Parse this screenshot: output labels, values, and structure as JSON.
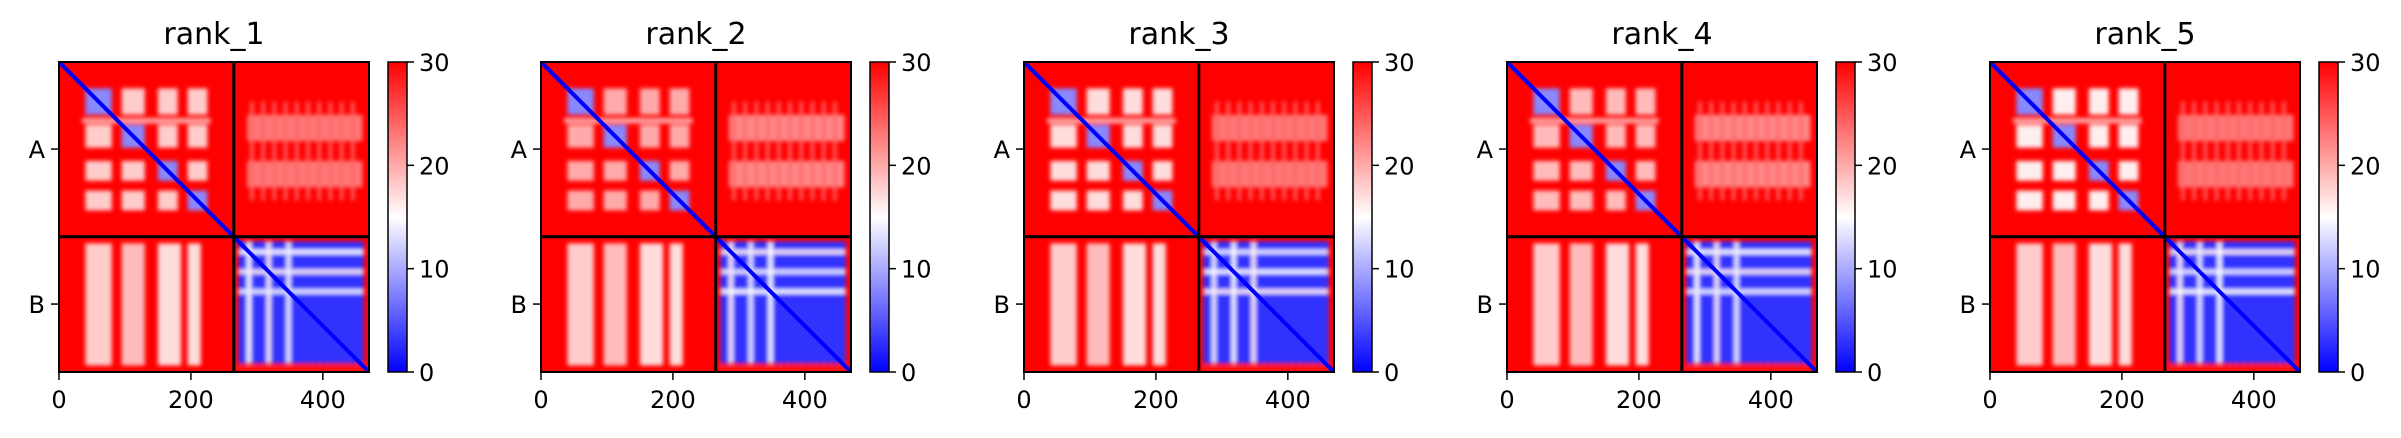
{
  "chart_data": {
    "type": "heatmap",
    "panels": [
      {
        "title": "rank_1",
        "variant": 1
      },
      {
        "title": "rank_2",
        "variant": 2
      },
      {
        "title": "rank_3",
        "variant": 3
      },
      {
        "title": "rank_4",
        "variant": 4
      },
      {
        "title": "rank_5",
        "variant": 5
      }
    ],
    "x_ticks": [
      {
        "value": 0,
        "label": "0"
      },
      {
        "value": 200,
        "label": "200"
      },
      {
        "value": 400,
        "label": "400"
      }
    ],
    "x_range": [
      0,
      470
    ],
    "chain_boundary": 265,
    "y_chains": [
      {
        "label": "A",
        "center": 132
      },
      {
        "label": "B",
        "center": 367
      }
    ],
    "colorbar": {
      "range": [
        0,
        30
      ],
      "ticks": [
        {
          "value": 0,
          "label": "0"
        },
        {
          "value": 10,
          "label": "10"
        },
        {
          "value": 20,
          "label": "20"
        },
        {
          "value": 30,
          "label": "30"
        }
      ],
      "colors": {
        "low": "#0000ff",
        "mid": "#ffffff",
        "high": "#ff0000"
      }
    }
  }
}
